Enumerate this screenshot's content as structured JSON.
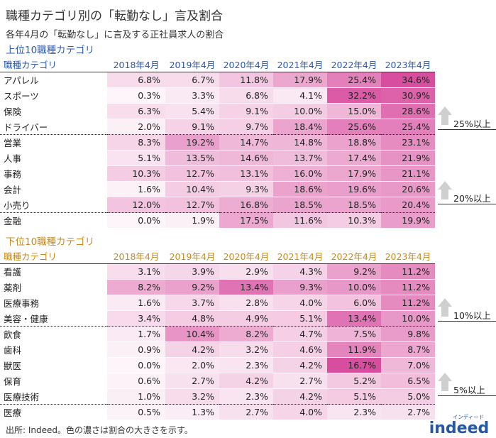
{
  "title": "職種カテゴリ別の「転勤なし」言及割合",
  "subtitle": "各年4月の「転勤なし」に言及する正社員求人の割合",
  "source": "出所: Indeed。色の濃さは割合の大きさを示す。",
  "logo": {
    "main": "indeed",
    "kana": "インディード"
  },
  "colors": {
    "heat_max": "#d6449a",
    "top_header": "#2b58b5",
    "bottom_header": "#c88a1d",
    "arrow": "#cfcfcf"
  },
  "chart_data": [
    {
      "type": "heatmap",
      "title": "上位10職種カテゴリ",
      "row_header": "職種カテゴリ",
      "columns": [
        "2018年4月",
        "2019年4月",
        "2020年4月",
        "2021年4月",
        "2022年4月",
        "2023年4月"
      ],
      "rows": [
        {
          "label": "アパレル",
          "values": [
            6.8,
            6.7,
            11.8,
            17.9,
            25.4,
            34.6
          ]
        },
        {
          "label": "スポーツ",
          "values": [
            0.3,
            3.3,
            6.8,
            4.1,
            32.2,
            30.9
          ]
        },
        {
          "label": "保険",
          "values": [
            6.3,
            5.4,
            9.1,
            10.0,
            15.0,
            28.6
          ]
        },
        {
          "label": "ドライバー",
          "values": [
            2.0,
            9.1,
            9.7,
            18.4,
            25.6,
            25.4
          ]
        },
        {
          "label": "営業",
          "values": [
            8.3,
            19.2,
            14.7,
            14.8,
            18.8,
            23.1
          ]
        },
        {
          "label": "人事",
          "values": [
            5.1,
            13.5,
            14.6,
            13.7,
            17.4,
            21.9
          ]
        },
        {
          "label": "事務",
          "values": [
            10.3,
            12.7,
            13.1,
            16.0,
            17.9,
            21.1
          ]
        },
        {
          "label": "会計",
          "values": [
            1.6,
            10.4,
            9.3,
            18.6,
            19.6,
            20.6
          ]
        },
        {
          "label": "小売り",
          "values": [
            12.0,
            12.7,
            16.8,
            18.5,
            18.5,
            20.4
          ]
        },
        {
          "label": "金融",
          "values": [
            0.0,
            1.9,
            17.5,
            11.6,
            10.3,
            19.9
          ]
        }
      ],
      "annotations": [
        {
          "label": "25%以上"
        },
        {
          "label": "20%以上"
        }
      ]
    },
    {
      "type": "heatmap",
      "title": "下位10職種カテゴリ",
      "row_header": "職種カテゴリ",
      "columns": [
        "2018年4月",
        "2019年4月",
        "2020年4月",
        "2021年4月",
        "2022年4月",
        "2023年4月"
      ],
      "rows": [
        {
          "label": "看護",
          "values": [
            3.1,
            3.9,
            2.9,
            4.3,
            9.2,
            11.2
          ]
        },
        {
          "label": "薬剤",
          "values": [
            8.2,
            9.2,
            13.4,
            9.3,
            10.0,
            11.2
          ]
        },
        {
          "label": "医療事務",
          "values": [
            1.6,
            3.7,
            2.8,
            4.0,
            6.0,
            11.2
          ]
        },
        {
          "label": "美容・健康",
          "values": [
            3.4,
            4.8,
            4.9,
            5.1,
            13.4,
            10.0
          ]
        },
        {
          "label": "飲食",
          "values": [
            1.7,
            10.4,
            8.2,
            4.7,
            7.5,
            9.8
          ]
        },
        {
          "label": "歯科",
          "values": [
            0.9,
            4.2,
            3.2,
            4.6,
            11.9,
            8.7
          ]
        },
        {
          "label": "獣医",
          "values": [
            0.0,
            2.0,
            2.3,
            4.2,
            16.7,
            7.0
          ]
        },
        {
          "label": "保育",
          "values": [
            0.6,
            2.7,
            4.2,
            2.7,
            5.2,
            6.5
          ]
        },
        {
          "label": "医療技術",
          "values": [
            1.0,
            3.2,
            2.3,
            4.2,
            5.1,
            5.0
          ]
        },
        {
          "label": "医療",
          "values": [
            0.5,
            1.3,
            2.7,
            4.0,
            2.3,
            2.7
          ]
        }
      ],
      "annotations": [
        {
          "label": "10%以上"
        },
        {
          "label": "5%以上"
        }
      ]
    }
  ]
}
